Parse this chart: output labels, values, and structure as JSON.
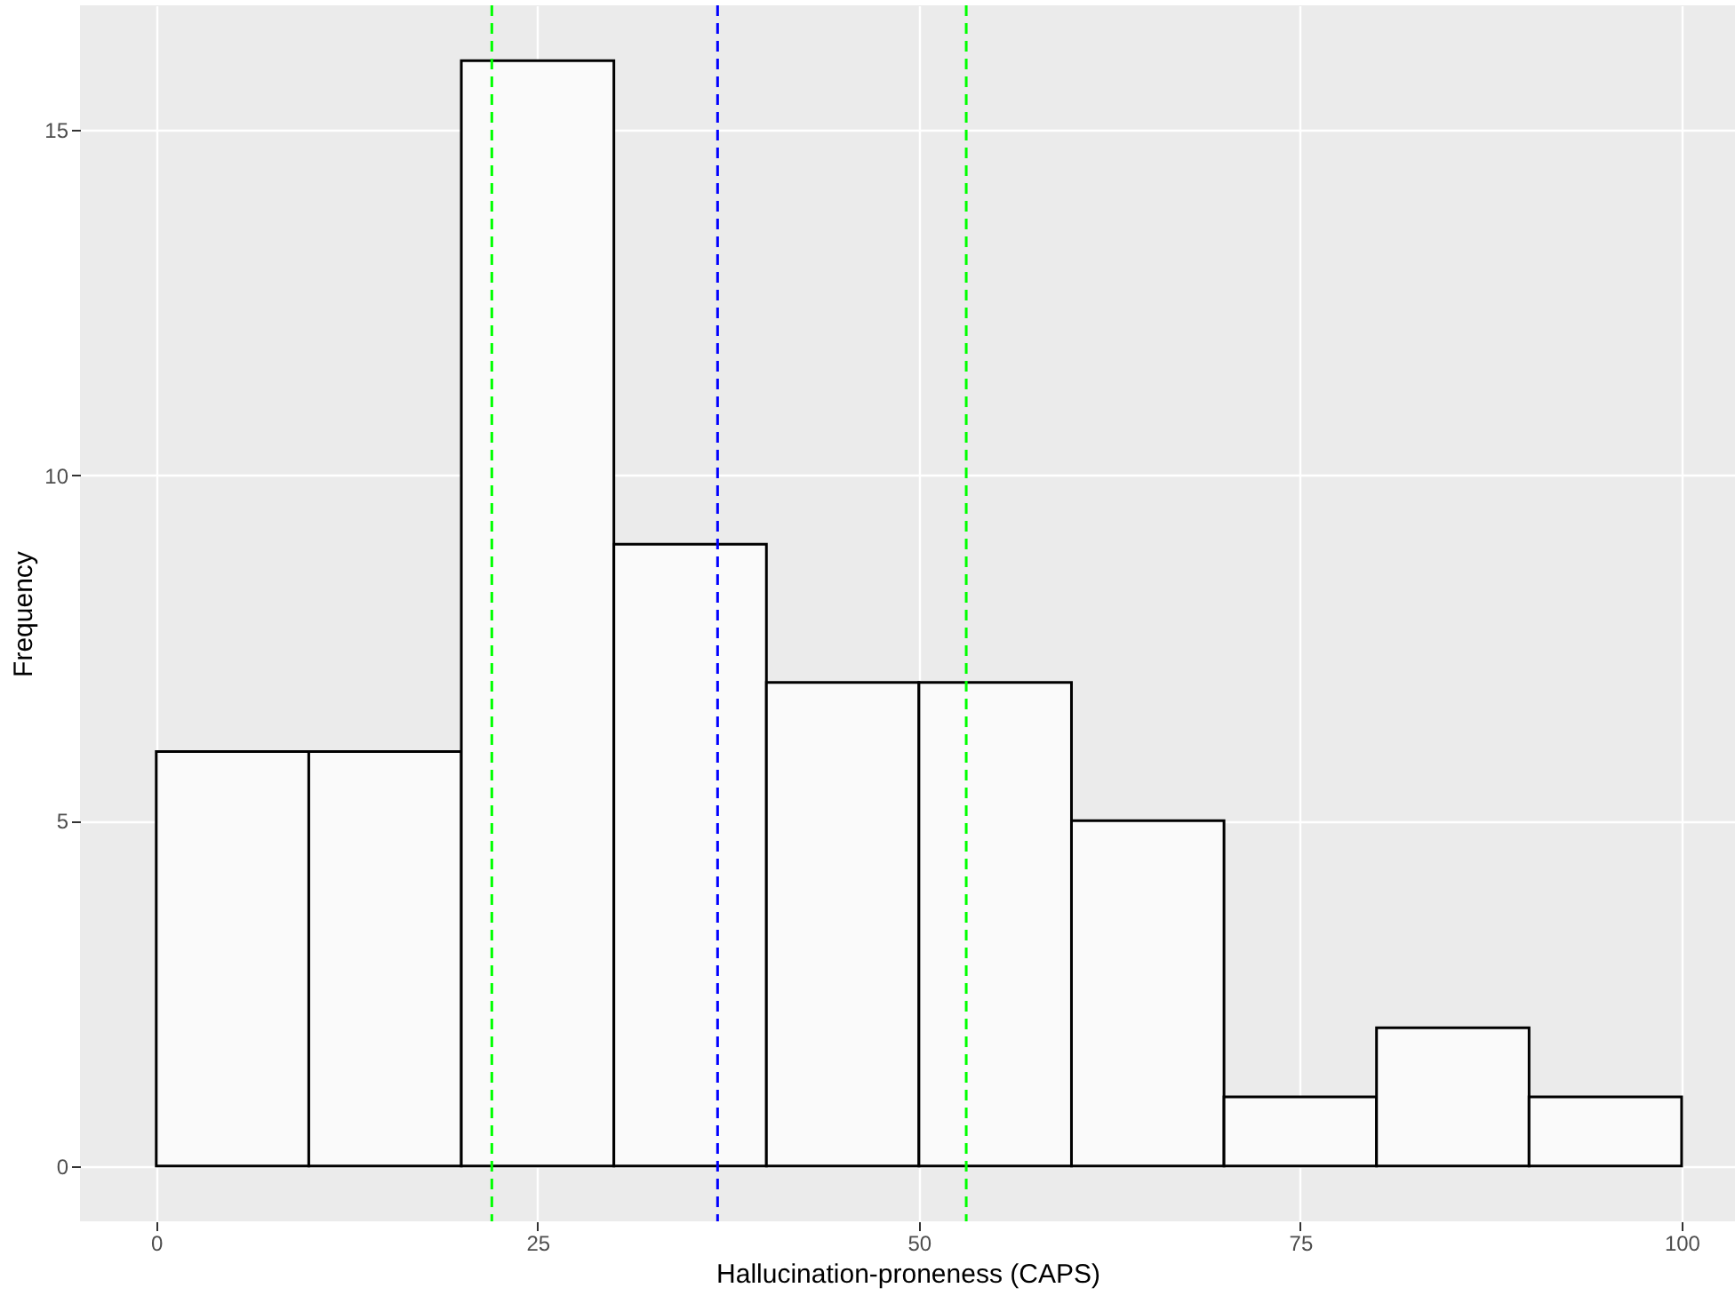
{
  "chart_data": {
    "type": "histogram",
    "xlabel": "Hallucination-proneness (CAPS)",
    "ylabel": "Frequency",
    "bins": [
      0,
      10,
      20,
      30,
      40,
      50,
      60,
      70,
      80,
      90,
      100
    ],
    "values": [
      6,
      6,
      16,
      9,
      7,
      7,
      5,
      1,
      2,
      1
    ],
    "color": "#fafafa",
    "xlim": [
      -5,
      103.5
    ],
    "xticks": [
      0,
      25,
      50,
      75,
      100
    ],
    "ylim": [
      -0.8,
      16.8
    ],
    "yticks": [
      0,
      5,
      10,
      15
    ],
    "grid": true,
    "ref_lines": [
      {
        "axis": "x",
        "value": 22.0,
        "color": "#00ff00",
        "line_style": "dashed"
      },
      {
        "axis": "x",
        "value": 36.8,
        "color": "#0000ff",
        "line_style": "dashed"
      },
      {
        "axis": "x",
        "value": 53.1,
        "color": "#00ff00",
        "line_style": "dashed"
      }
    ]
  }
}
